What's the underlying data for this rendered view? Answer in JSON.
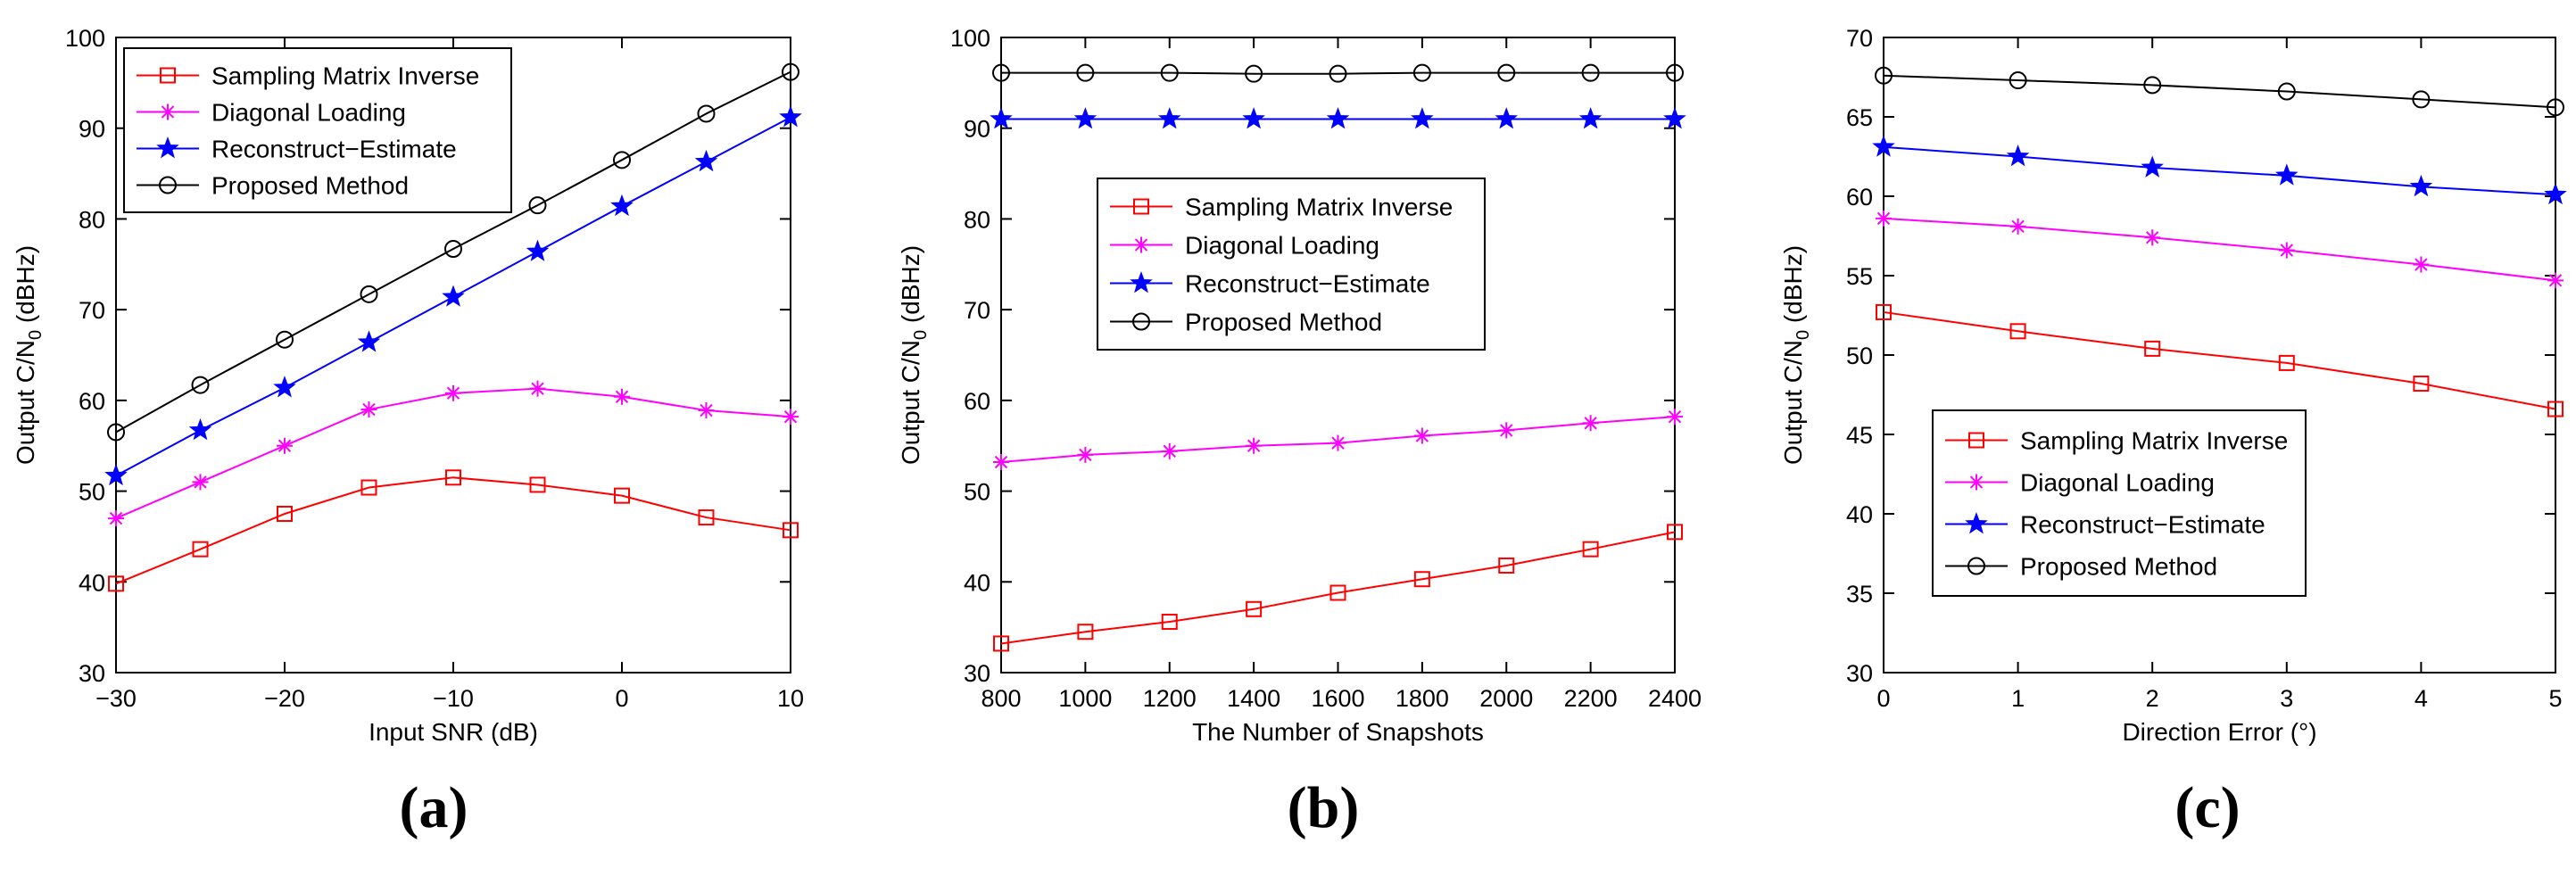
{
  "figure": {
    "panel_labels": [
      "(a)",
      "(b)",
      "(c)"
    ]
  },
  "colors": {
    "sampling_matrix_inverse": "#ff0000",
    "diagonal_loading": "#ff00ff",
    "reconstruct_estimate": "#0000ff",
    "proposed_method": "#000000"
  },
  "chart_data": [
    {
      "type": "line",
      "panel": "(a)",
      "xlabel": "Input SNR (dB)",
      "ylabel": "Output C/N",
      "ylabel_sub": "0",
      "ylabel_unit": " (dBHz)",
      "xlim": [
        -30,
        10
      ],
      "ylim": [
        30,
        100
      ],
      "xticks": [
        -30,
        -20,
        -10,
        0,
        10
      ],
      "xtick_labels": [
        "−30",
        "−20",
        "−10",
        "0",
        "10"
      ],
      "yticks": [
        30,
        40,
        50,
        60,
        70,
        80,
        90,
        100
      ],
      "ytick_labels": [
        "30",
        "40",
        "50",
        "60",
        "70",
        "80",
        "90",
        "100"
      ],
      "legend_position": "top-left",
      "x": [
        -30,
        -25,
        -20,
        -15,
        -10,
        -5,
        0,
        5,
        10
      ],
      "series": [
        {
          "name": "Sampling Matrix Inverse",
          "marker": "square",
          "color": "#ff0000",
          "values": [
            39.8,
            43.6,
            47.5,
            50.4,
            51.5,
            50.7,
            49.5,
            47.1,
            45.7
          ]
        },
        {
          "name": "Diagonal Loading",
          "marker": "asterisk",
          "color": "#ff00ff",
          "values": [
            47.0,
            51.0,
            55.0,
            59.0,
            60.8,
            61.3,
            60.4,
            58.9,
            58.2
          ]
        },
        {
          "name": "Reconstruct−Estimate",
          "marker": "star",
          "color": "#0000ff",
          "values": [
            51.7,
            56.7,
            61.4,
            66.4,
            71.4,
            76.4,
            81.4,
            86.3,
            91.2
          ]
        },
        {
          "name": "Proposed Method",
          "marker": "circle",
          "color": "#000000",
          "values": [
            56.5,
            61.7,
            66.7,
            71.7,
            76.7,
            81.5,
            86.5,
            91.6,
            96.2
          ]
        }
      ]
    },
    {
      "type": "line",
      "panel": "(b)",
      "xlabel": "The Number of Snapshots",
      "ylabel": "Output C/N",
      "ylabel_sub": "0",
      "ylabel_unit": " (dBHz)",
      "xlim": [
        800,
        2400
      ],
      "ylim": [
        30,
        100
      ],
      "xticks": [
        800,
        1000,
        1200,
        1400,
        1600,
        1800,
        2000,
        2200,
        2400
      ],
      "xtick_labels": [
        "800",
        "1000",
        "1200",
        "1400",
        "1600",
        "1800",
        "2000",
        "2200",
        "2400"
      ],
      "yticks": [
        30,
        40,
        50,
        60,
        70,
        80,
        90,
        100
      ],
      "ytick_labels": [
        "30",
        "40",
        "50",
        "60",
        "70",
        "80",
        "90",
        "100"
      ],
      "legend_position": "center",
      "x": [
        800,
        1000,
        1200,
        1400,
        1600,
        1800,
        2000,
        2200,
        2400
      ],
      "series": [
        {
          "name": "Sampling Matrix Inverse",
          "marker": "square",
          "color": "#ff0000",
          "values": [
            33.2,
            34.5,
            35.6,
            37.0,
            38.8,
            40.3,
            41.8,
            43.6,
            45.5
          ]
        },
        {
          "name": "Diagonal Loading",
          "marker": "asterisk",
          "color": "#ff00ff",
          "values": [
            53.2,
            54.0,
            54.4,
            55.0,
            55.3,
            56.1,
            56.7,
            57.5,
            58.2
          ]
        },
        {
          "name": "Reconstruct−Estimate",
          "marker": "star",
          "color": "#0000ff",
          "values": [
            91.0,
            91.0,
            91.0,
            91.0,
            91.0,
            91.0,
            91.0,
            91.0,
            91.0
          ]
        },
        {
          "name": "Proposed Method",
          "marker": "circle",
          "color": "#000000",
          "values": [
            96.1,
            96.1,
            96.1,
            96.0,
            96.0,
            96.1,
            96.1,
            96.1,
            96.1
          ]
        }
      ]
    },
    {
      "type": "line",
      "panel": "(c)",
      "xlabel": "Direction Error (°)",
      "ylabel": "Output C/N",
      "ylabel_sub": "0",
      "ylabel_unit": " (dBHz)",
      "xlim": [
        0,
        5
      ],
      "ylim": [
        30,
        70
      ],
      "xticks": [
        0,
        1,
        2,
        3,
        4,
        5
      ],
      "xtick_labels": [
        "0",
        "1",
        "2",
        "3",
        "4",
        "5"
      ],
      "yticks": [
        30,
        35,
        40,
        45,
        50,
        55,
        60,
        65,
        70
      ],
      "ytick_labels": [
        "30",
        "35",
        "40",
        "45",
        "50",
        "55",
        "60",
        "65",
        "70"
      ],
      "legend_position": "bottom-left",
      "x": [
        0,
        1,
        2,
        3,
        4,
        5
      ],
      "series": [
        {
          "name": "Sampling Matrix Inverse",
          "marker": "square",
          "color": "#ff0000",
          "values": [
            52.7,
            51.5,
            50.4,
            49.5,
            48.2,
            46.6
          ]
        },
        {
          "name": "Diagonal Loading",
          "marker": "asterisk",
          "color": "#ff00ff",
          "values": [
            58.6,
            58.1,
            57.4,
            56.6,
            55.7,
            54.7
          ]
        },
        {
          "name": "Reconstruct−Estimate",
          "marker": "star",
          "color": "#0000ff",
          "values": [
            63.1,
            62.5,
            61.8,
            61.3,
            60.6,
            60.1
          ]
        },
        {
          "name": "Proposed Method",
          "marker": "circle",
          "color": "#000000",
          "values": [
            67.6,
            67.3,
            67.0,
            66.6,
            66.1,
            65.6
          ]
        }
      ]
    }
  ]
}
